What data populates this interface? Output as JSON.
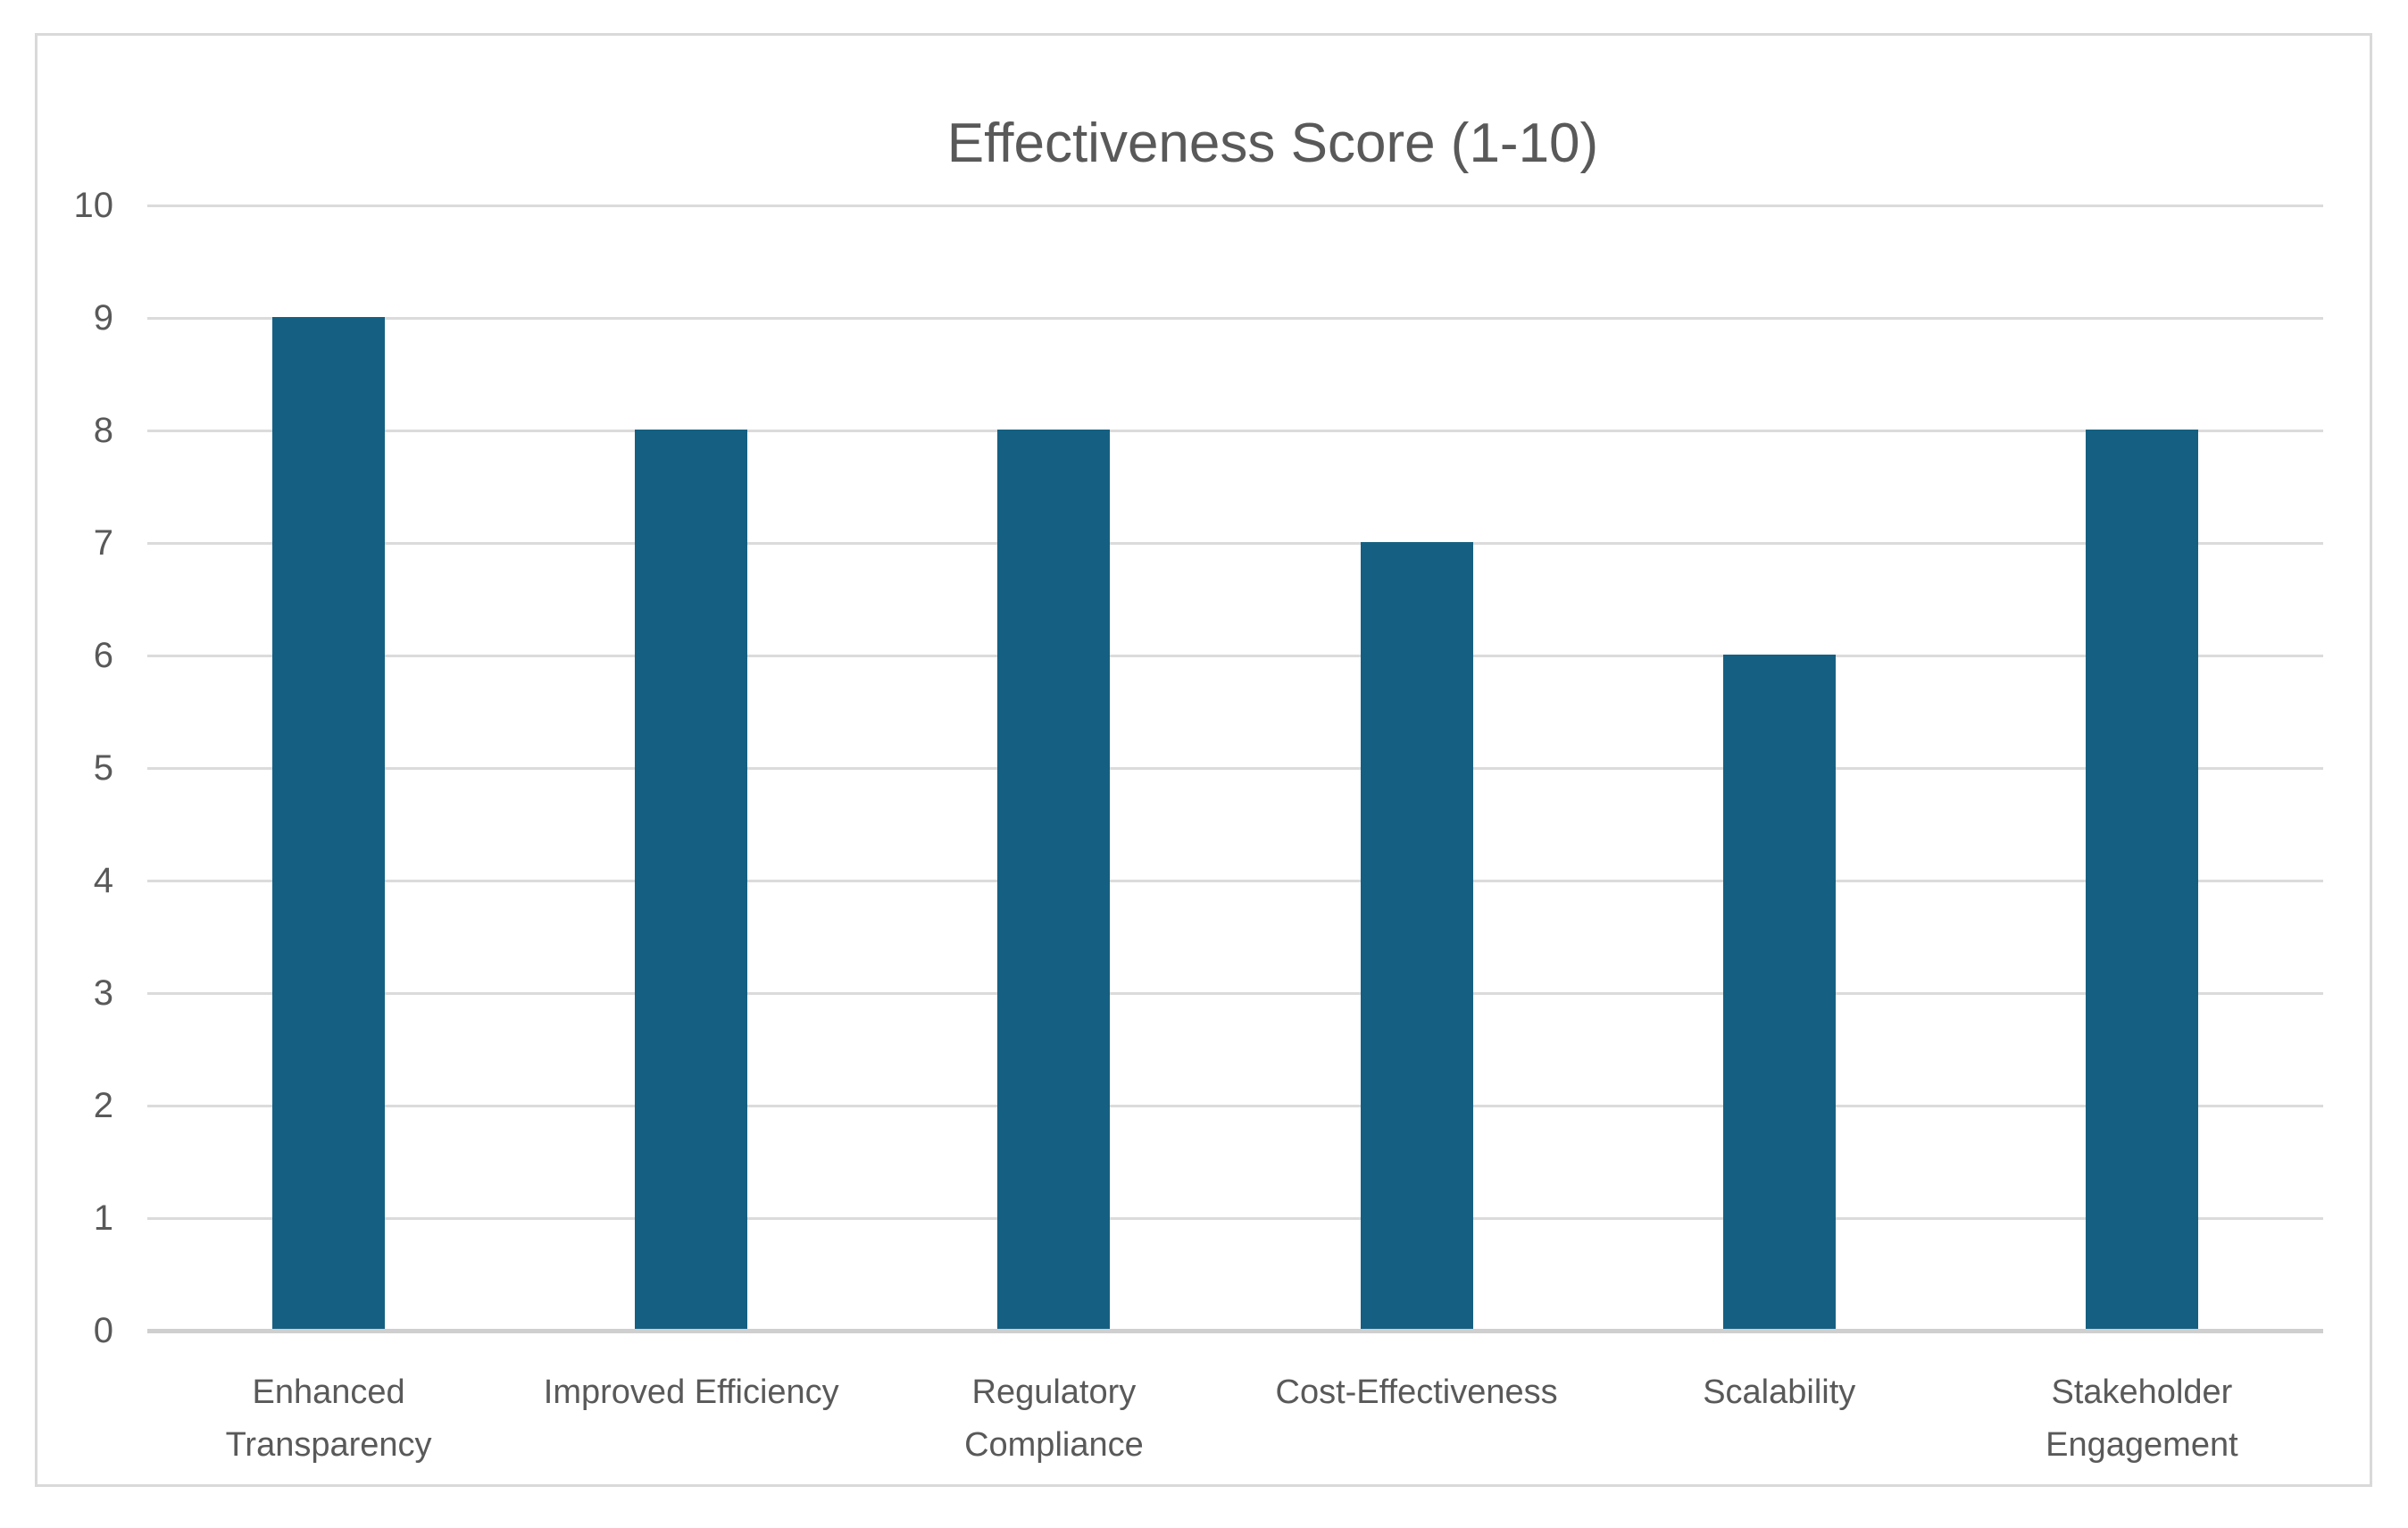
{
  "frame": {
    "border_color": "#D9D9D9",
    "background_color": "#FFFFFF"
  },
  "chart_data": {
    "type": "bar",
    "title": "Effectiveness Score (1-10)",
    "categories": [
      "Enhanced Transparency",
      "Improved Efficiency",
      "Regulatory Compliance",
      "Cost-Effectiveness",
      "Scalability",
      "Stakeholder Engagement"
    ],
    "values": [
      9,
      8,
      8,
      7,
      6,
      8
    ],
    "xlabel": "",
    "ylabel": "",
    "ylim": [
      0,
      10
    ],
    "y_tick_step": 1,
    "y_tick_labels": [
      "0",
      "1",
      "2",
      "3",
      "4",
      "5",
      "6",
      "7",
      "8",
      "9",
      "10"
    ],
    "grid": true,
    "legend": false,
    "bar_color": "#156082",
    "gridline_color": "#DBDBDB",
    "axis_line_color": "#CFCFCF",
    "text_color": "#595959",
    "title_color": "#595959"
  }
}
